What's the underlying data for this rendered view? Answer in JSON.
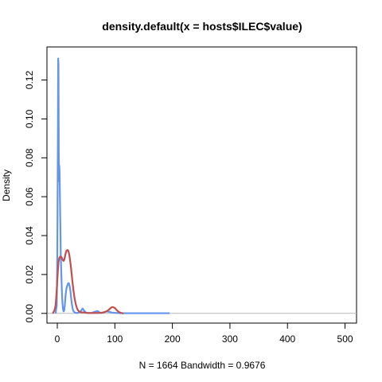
{
  "chart_data": {
    "type": "line",
    "title": "density.default(x = hosts$ILEC$value)",
    "xlabel": "N = 1664   Bandwidth = 0.9676",
    "ylabel": "Density",
    "xlim": [
      -18,
      520
    ],
    "ylim": [
      -0.005,
      0.137
    ],
    "x_ticks": [
      0,
      100,
      200,
      300,
      400,
      500
    ],
    "x_tick_labels": [
      "0",
      "100",
      "200",
      "300",
      "400",
      "500"
    ],
    "y_ticks": [
      0.0,
      0.02,
      0.04,
      0.06,
      0.08,
      0.1,
      0.12
    ],
    "y_tick_labels": [
      "0.00",
      "0.02",
      "0.04",
      "0.06",
      "0.08",
      "0.10",
      "0.12"
    ],
    "grid": false,
    "baseline_y": 0,
    "series": [
      {
        "color": "#6495ED",
        "x": [
          -3,
          -1,
          0,
          1,
          1.5,
          2,
          2.5,
          3,
          3.5,
          4,
          5,
          5.5,
          6,
          7,
          8,
          9,
          10,
          11,
          12,
          13,
          14,
          15,
          16,
          17,
          18,
          19,
          20,
          21,
          22,
          23,
          24,
          25,
          26,
          27,
          28,
          30,
          32,
          35,
          40,
          44,
          47,
          50,
          53,
          56,
          60,
          65,
          70,
          73,
          76,
          80,
          85,
          90,
          95,
          100,
          105,
          110,
          115,
          120,
          150,
          195
        ],
        "y": [
          0,
          0.004,
          0.03,
          0.09,
          0.131,
          0.128,
          0.085,
          0.068,
          0.076,
          0.072,
          0.05,
          0.042,
          0.03,
          0.02,
          0.011,
          0.005,
          0.002,
          0.001,
          0.0015,
          0.004,
          0.008,
          0.011,
          0.013,
          0.014,
          0.015,
          0.0155,
          0.0155,
          0.0145,
          0.013,
          0.011,
          0.008,
          0.0055,
          0.0035,
          0.002,
          0.0012,
          0.0005,
          0.0003,
          0.0002,
          0.0008,
          0.0025,
          0.0012,
          0.0004,
          0.0002,
          0.0002,
          0.0003,
          0.0008,
          0.0012,
          0.0006,
          0.0002,
          0.0004,
          0.001,
          0.0008,
          0.0004,
          0.0003,
          0.0002,
          0.0001,
          0.0001,
          0.0001,
          0.0001,
          0.0001
        ]
      },
      {
        "color": "#C0504D",
        "x": [
          -8,
          -5,
          -3,
          -1,
          0,
          1,
          2,
          3,
          4,
          5,
          6,
          7,
          8,
          9,
          10,
          11,
          12,
          13,
          14,
          15,
          16,
          17,
          18,
          19,
          20,
          21,
          22,
          23,
          24,
          25,
          26,
          27,
          28,
          29,
          30,
          32,
          34,
          36,
          38,
          40,
          42,
          44,
          46,
          48,
          50,
          55,
          60,
          65,
          70,
          75,
          80,
          85,
          88,
          90,
          93,
          95,
          97,
          100,
          103,
          106,
          110,
          115
        ],
        "y": [
          0,
          0.0015,
          0.004,
          0.012,
          0.017,
          0.022,
          0.026,
          0.028,
          0.0288,
          0.0292,
          0.0292,
          0.029,
          0.0285,
          0.0278,
          0.0272,
          0.027,
          0.0275,
          0.0288,
          0.0302,
          0.0315,
          0.0322,
          0.0325,
          0.0326,
          0.0322,
          0.0312,
          0.0298,
          0.0278,
          0.0255,
          0.023,
          0.02,
          0.0172,
          0.0145,
          0.012,
          0.0098,
          0.0078,
          0.0048,
          0.0028,
          0.0016,
          0.001,
          0.0007,
          0.0005,
          0.0005,
          0.0005,
          0.0004,
          0.0003,
          0.0002,
          0.0002,
          0.0002,
          0.0002,
          0.0003,
          0.0005,
          0.001,
          0.0015,
          0.002,
          0.0028,
          0.0032,
          0.0032,
          0.0028,
          0.0018,
          0.0009,
          0.0003,
          0
        ]
      }
    ]
  }
}
